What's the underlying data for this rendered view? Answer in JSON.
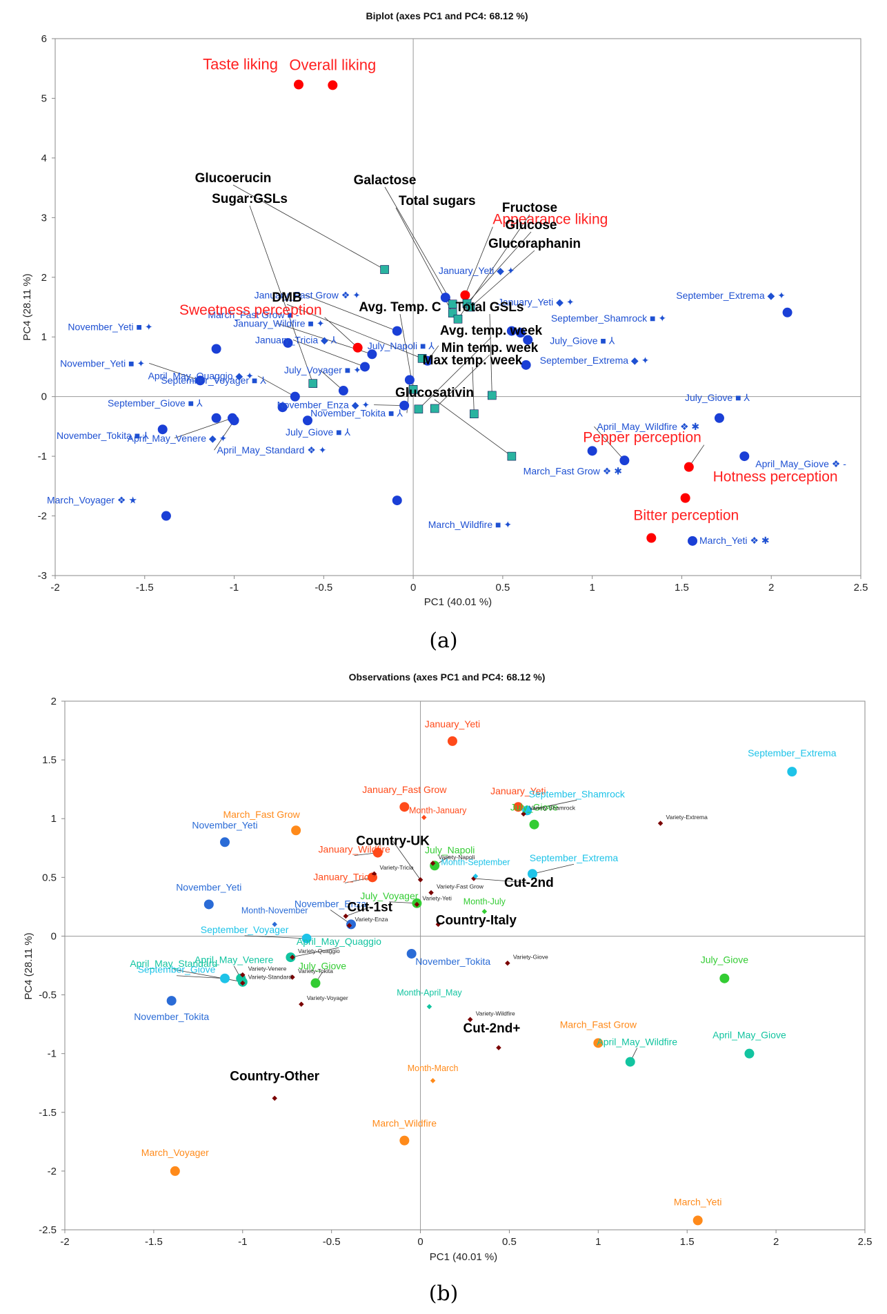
{
  "chart_data": [
    {
      "type": "scatter",
      "panel": "(a)",
      "title": "Biplot (axes PC1 and PC4: 68.12 %)",
      "xlabel": "PC1 (40.01 %)",
      "ylabel": "PC4 (28.11 %)",
      "xlim": [
        -2,
        2.5
      ],
      "ylim": [
        -3,
        6
      ],
      "xticks": [
        -2,
        -1.5,
        -1,
        -0.5,
        0,
        0.5,
        1,
        1.5,
        2,
        2.5
      ],
      "yticks": [
        -3,
        -2,
        -1,
        0,
        1,
        2,
        3,
        4,
        5,
        6
      ],
      "grid": false,
      "colors": {
        "observation": "#1a3fd6",
        "sensory": "#ff0000",
        "chemical": "#2ab3a0",
        "label_blue": "#1e50d2",
        "label_red": "#ff2020",
        "label_black": "#000000"
      },
      "observations": [
        {
          "label": "September_Extrema",
          "sym": "◆ ✦",
          "x": 2.09,
          "y": 1.41
        },
        {
          "label": "January_Fast Grow",
          "sym": "❖ ✦",
          "x": -0.09,
          "y": 1.1
        },
        {
          "label": "January_Wildfire",
          "sym": "■ ✦",
          "x": -0.23,
          "y": 0.71
        },
        {
          "label": "January_Tricia",
          "sym": "◆ ⅄",
          "x": -0.27,
          "y": 0.5
        },
        {
          "label": "March_Fast Grow",
          "sym": "■ -",
          "x": -0.7,
          "y": 0.9
        },
        {
          "label": "November_Yeti",
          "sym": "■ ✦",
          "x": -1.1,
          "y": 0.8
        },
        {
          "label": "November_Yeti",
          "sym": "■ ✦",
          "x": -1.19,
          "y": 0.27
        },
        {
          "label": "September_Voyager",
          "sym": "■ ⅄",
          "x": -0.73,
          "y": -0.18
        },
        {
          "label": "July_Voyager",
          "sym": "■ ✦",
          "x": -0.39,
          "y": 0.1
        },
        {
          "label": "April_May_Quaggio",
          "sym": "◆ ✦",
          "x": -0.66,
          "y": 0.0
        },
        {
          "label": "September_Giove",
          "sym": "■ ⅄",
          "x": -1.1,
          "y": -0.36
        },
        {
          "label": "November_Tokita",
          "sym": "■ ⅄",
          "x": -1.4,
          "y": -0.55
        },
        {
          "label": "April_May_Venere",
          "sym": "◆ ✦",
          "x": -1.01,
          "y": -0.36
        },
        {
          "label": "April_May_Standard",
          "sym": "❖ ✦",
          "x": -1.0,
          "y": -0.4
        },
        {
          "label": "November_Enza",
          "sym": "◆ ✦",
          "x": -0.05,
          "y": -0.15
        },
        {
          "label": "July_Giove",
          "sym": "■ ⅄",
          "x": -0.59,
          "y": -0.4
        },
        {
          "label": "November_Tokita",
          "sym": "■ ⅄",
          "x": -0.02,
          "y": 0.28
        },
        {
          "label": "March_Wildfire",
          "sym": "■ ✦",
          "x": -0.09,
          "y": -1.74
        },
        {
          "label": "March_Voyager",
          "sym": "❖ ★",
          "x": -1.38,
          "y": -2.0
        },
        {
          "label": "January_Yeti",
          "sym": "◆ ✦",
          "x": 0.18,
          "y": 1.66
        },
        {
          "label": "January_Yeti",
          "sym": "◆ ✦",
          "x": 0.55,
          "y": 1.1
        },
        {
          "label": "July_Napoli",
          "sym": "■ ⅄",
          "x": 0.08,
          "y": 0.6
        },
        {
          "label": "September_Shamrock",
          "sym": "■ ✦",
          "x": 0.6,
          "y": 1.07
        },
        {
          "label": "July_Giove",
          "sym": "■ ⅄",
          "x": 0.64,
          "y": 0.95
        },
        {
          "label": "September_Extrema",
          "sym": "◆ ✦",
          "x": 0.63,
          "y": 0.53
        },
        {
          "label": "July_Giove",
          "sym": "■ ⅄",
          "x": 1.71,
          "y": -0.36
        },
        {
          "label": "April_May_Wildfire",
          "sym": "❖ ✱",
          "x": 1.18,
          "y": -1.07
        },
        {
          "label": "March_Fast Grow",
          "sym": "❖ ✱",
          "x": 1.0,
          "y": -0.91
        },
        {
          "label": "April_May_Giove",
          "sym": "❖ -",
          "x": 1.85,
          "y": -1.0
        },
        {
          "label": "March_Yeti",
          "sym": "❖ ✱",
          "x": 1.56,
          "y": -2.42
        }
      ],
      "sensory_variables": [
        {
          "label": "Taste liking",
          "x": -0.64,
          "y": 5.23
        },
        {
          "label": "Overall liking",
          "x": -0.45,
          "y": 5.22
        },
        {
          "label": "Sweetness perception",
          "x": -0.31,
          "y": 0.82
        },
        {
          "label": "Appearance liking",
          "x": 0.29,
          "y": 1.7
        },
        {
          "label": "Pepper perception",
          "x": 1.54,
          "y": -1.18
        },
        {
          "label": "Hotness perception",
          "x": 1.52,
          "y": -1.7
        },
        {
          "label": "Bitter perception",
          "x": 1.33,
          "y": -2.37
        }
      ],
      "chemical_variables": [
        {
          "label": "Glucoerucin",
          "x": -0.16,
          "y": 2.13
        },
        {
          "label": "Sugar:GSLs",
          "x": -0.56,
          "y": 0.22
        },
        {
          "label": "Galactose",
          "x": 0.22,
          "y": 1.55
        },
        {
          "label": "Total sugars",
          "x": 0.22,
          "y": 1.4
        },
        {
          "label": "Fructose",
          "x": 0.25,
          "y": 1.3
        },
        {
          "label": "Glucose",
          "x": 0.3,
          "y": 1.56
        },
        {
          "label": "Glucoraphanin",
          "x": 0.32,
          "y": 1.5
        },
        {
          "label": "DMB",
          "x": 0.05,
          "y": 0.64
        },
        {
          "label": "Avg. Temp. C",
          "x": 0.0,
          "y": 0.12
        },
        {
          "label": "Total GSLs",
          "x": 0.44,
          "y": 0.02
        },
        {
          "label": "Avg. temp. week",
          "x": 0.03,
          "y": -0.21
        },
        {
          "label": "Min temp. week",
          "x": 0.12,
          "y": -0.2
        },
        {
          "label": "Max temp. week",
          "x": 0.34,
          "y": -0.29
        },
        {
          "label": "Glucosativin",
          "x": 0.55,
          "y": -1.0
        }
      ]
    },
    {
      "type": "scatter",
      "panel": "(b)",
      "title": "Observations (axes PC1 and PC4: 68.12 %)",
      "xlabel": "PC1 (40.01 %)",
      "ylabel": "PC4 (28.11 %)",
      "xlim": [
        -2,
        2.5
      ],
      "ylim": [
        -2.5,
        2
      ],
      "xticks": [
        -2,
        -1.5,
        -1,
        -0.5,
        0,
        0.5,
        1,
        1.5,
        2,
        2.5
      ],
      "yticks": [
        -2.5,
        -2,
        -1.5,
        -1,
        -0.5,
        0,
        0.5,
        1,
        1.5,
        2
      ],
      "grid": false,
      "colors": {
        "January": "#ff4a1a",
        "March": "#ff8a1a",
        "July": "#33cc33",
        "November": "#2a6bd6",
        "September": "#1ec3e8",
        "April_May": "#12c4a0",
        "centroid": "#7a0000",
        "label_black": "#000000"
      },
      "observations": [
        {
          "label": "January_Yeti",
          "month": "January",
          "x": 0.18,
          "y": 1.66
        },
        {
          "label": "January_Fast Grow",
          "month": "January",
          "x": -0.09,
          "y": 1.1
        },
        {
          "label": "January_Yeti",
          "month": "January",
          "x": 0.55,
          "y": 1.1
        },
        {
          "label": "January_Wildfire",
          "month": "January",
          "x": -0.24,
          "y": 0.71
        },
        {
          "label": "January_Tricia",
          "month": "January",
          "x": -0.27,
          "y": 0.5
        },
        {
          "label": "March_Fast Grow",
          "month": "March",
          "x": -0.7,
          "y": 0.9
        },
        {
          "label": "March_Wildfire",
          "month": "March",
          "x": -0.09,
          "y": -1.74
        },
        {
          "label": "March_Voyager",
          "month": "March",
          "x": -1.38,
          "y": -2.0
        },
        {
          "label": "March_Fast Grow",
          "month": "March",
          "x": 1.0,
          "y": -0.91
        },
        {
          "label": "March_Yeti",
          "month": "March",
          "x": 1.56,
          "y": -2.42
        },
        {
          "label": "July_Giove",
          "month": "July",
          "x": 0.64,
          "y": 0.95
        },
        {
          "label": "July_Napoli",
          "month": "July",
          "x": 0.08,
          "y": 0.6
        },
        {
          "label": "July_Voyager",
          "month": "July",
          "x": -0.02,
          "y": 0.28
        },
        {
          "label": "July_Giove",
          "month": "July",
          "x": -0.59,
          "y": -0.4
        },
        {
          "label": "July_Giove",
          "month": "July",
          "x": 1.71,
          "y": -0.36
        },
        {
          "label": "November_Yeti",
          "month": "November",
          "x": -1.1,
          "y": 0.8
        },
        {
          "label": "November_Yeti",
          "month": "November",
          "x": -1.19,
          "y": 0.27
        },
        {
          "label": "November_Enza",
          "month": "November",
          "x": -0.39,
          "y": 0.1
        },
        {
          "label": "November_Tokita",
          "month": "November",
          "x": -0.05,
          "y": -0.15
        },
        {
          "label": "November_Tokita",
          "month": "November",
          "x": -1.4,
          "y": -0.55
        },
        {
          "label": "September_Extrema",
          "month": "September",
          "x": 2.09,
          "y": 1.4
        },
        {
          "label": "September_Shamrock",
          "month": "September",
          "x": 0.6,
          "y": 1.07
        },
        {
          "label": "September_Extrema",
          "month": "September",
          "x": 0.63,
          "y": 0.53
        },
        {
          "label": "September_Voyager",
          "month": "September",
          "x": -0.64,
          "y": -0.02
        },
        {
          "label": "September_Giove",
          "month": "September",
          "x": -1.1,
          "y": -0.36
        },
        {
          "label": "April_May_Venere",
          "month": "April_May",
          "x": -1.01,
          "y": -0.36
        },
        {
          "label": "April_May_Standard",
          "month": "April_May",
          "x": -1.0,
          "y": -0.39
        },
        {
          "label": "April_May_Quaggio",
          "month": "April_May",
          "x": -0.73,
          "y": -0.18
        },
        {
          "label": "April_May_Wildfire",
          "month": "April_May",
          "x": 1.18,
          "y": -1.07
        },
        {
          "label": "April_May_Giove",
          "month": "April_May",
          "x": 1.85,
          "y": -1.0
        }
      ],
      "supplementary": [
        {
          "label": "Country-UK",
          "x": 0.0,
          "y": 0.48,
          "style": "big"
        },
        {
          "label": "Country-Italy",
          "x": 0.1,
          "y": 0.1,
          "style": "big"
        },
        {
          "label": "Country-Other",
          "x": -0.82,
          "y": -1.38,
          "style": "big"
        },
        {
          "label": "Cut-1st",
          "x": -0.42,
          "y": 0.17,
          "style": "big"
        },
        {
          "label": "Cut-2nd",
          "x": 0.3,
          "y": 0.49,
          "style": "big"
        },
        {
          "label": "Cut-2nd+",
          "x": 0.44,
          "y": -0.95,
          "style": "big"
        },
        {
          "label": "Month-January",
          "x": 0.02,
          "y": 1.01,
          "style": "month",
          "color": "#ff4a1a"
        },
        {
          "label": "Month-November",
          "x": -0.82,
          "y": 0.1,
          "style": "month",
          "color": "#2a6bd6"
        },
        {
          "label": "Month-September",
          "x": 0.31,
          "y": 0.51,
          "style": "month",
          "color": "#1ec3e8"
        },
        {
          "label": "Month-July",
          "x": 0.36,
          "y": 0.21,
          "style": "month",
          "color": "#33cc33"
        },
        {
          "label": "Month-April_May",
          "x": 0.05,
          "y": -0.6,
          "style": "month",
          "color": "#12c4a0"
        },
        {
          "label": "Month-March",
          "x": 0.07,
          "y": -1.23,
          "style": "month",
          "color": "#ff8a1a"
        },
        {
          "label": "Variety-Extrema",
          "x": 1.35,
          "y": 0.96,
          "style": "variety"
        },
        {
          "label": "Variety-Shamrock",
          "x": 0.58,
          "y": 1.04,
          "style": "variety"
        },
        {
          "label": "Variety-Napoli",
          "x": 0.07,
          "y": 0.62,
          "style": "variety"
        },
        {
          "label": "Variety-Fast Grow",
          "x": 0.06,
          "y": 0.37,
          "style": "variety"
        },
        {
          "label": "Variety-Yeti",
          "x": -0.02,
          "y": 0.27,
          "style": "variety"
        },
        {
          "label": "Variety-Tricia",
          "x": -0.26,
          "y": 0.53,
          "style": "variety"
        },
        {
          "label": "Variety-Enza",
          "x": -0.4,
          "y": 0.09,
          "style": "variety"
        },
        {
          "label": "Variety-Giove",
          "x": 0.49,
          "y": -0.23,
          "style": "variety"
        },
        {
          "label": "Variety-Wildfire",
          "x": 0.28,
          "y": -0.71,
          "style": "variety"
        },
        {
          "label": "Variety-Venere",
          "x": -1.0,
          "y": -0.33,
          "style": "variety"
        },
        {
          "label": "Variety-Quaggio",
          "x": -0.72,
          "y": -0.18,
          "style": "variety"
        },
        {
          "label": "Variety-Tokita",
          "x": -0.72,
          "y": -0.35,
          "style": "variety"
        },
        {
          "label": "Variety-Voyager",
          "x": -0.67,
          "y": -0.58,
          "style": "variety"
        },
        {
          "label": "Variety-Standard",
          "x": -1.0,
          "y": -0.4,
          "style": "variety"
        }
      ]
    }
  ]
}
